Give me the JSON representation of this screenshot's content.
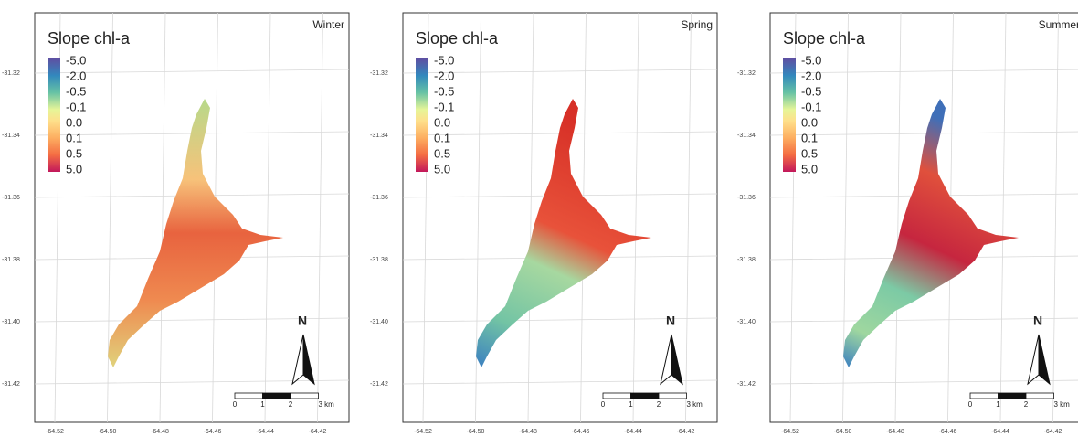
{
  "panels": [
    {
      "title": "Winter"
    },
    {
      "title": "Spring"
    },
    {
      "title": "Summer"
    }
  ],
  "legend": {
    "title": "Slope chl-a",
    "labels": [
      "-5.0",
      "-2.0",
      "-0.5",
      "-0.1",
      "0.0",
      "0.1",
      "0.5",
      "5.0"
    ]
  },
  "y_labels": [
    "-31.32",
    "-31.34",
    "-31.36",
    "-31.38",
    "-31.40",
    "-31.42"
  ],
  "x_labels": [
    "-64.52",
    "-64.50",
    "-64.48",
    "-64.46",
    "-64.44",
    "-64.42"
  ],
  "scale_bar": {
    "labels": [
      "0",
      "1",
      "2",
      "3 km"
    ]
  },
  "north": "N"
}
